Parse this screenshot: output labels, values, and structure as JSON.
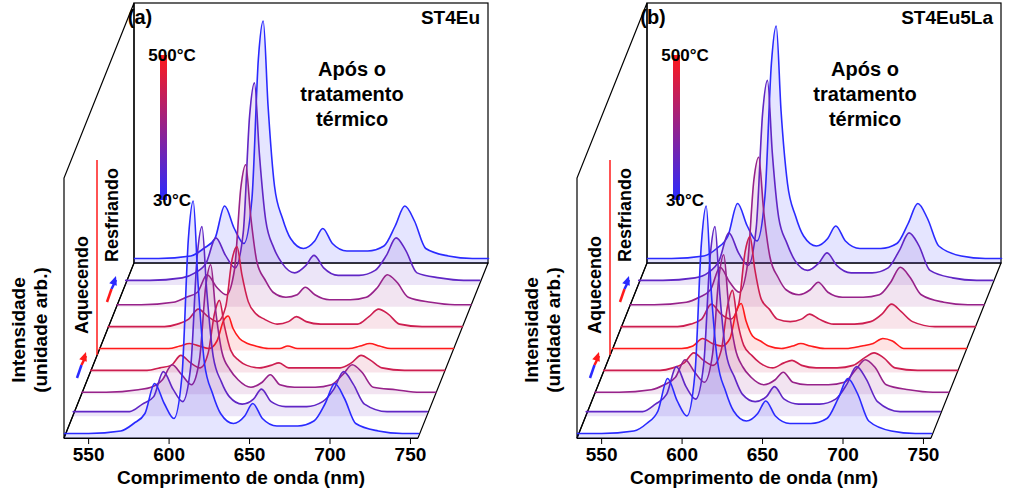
{
  "chart_data": [
    {
      "type": "line",
      "panel_label": "(a)",
      "title": "ST4Eu",
      "annotation": "Após o tratamento térmico",
      "xlabel": "Comprimento de onda (nm)",
      "ylabel": "Intensidade (unidade arb.)",
      "xlim": [
        535,
        755
      ],
      "xticks": [
        550,
        600,
        650,
        700,
        750
      ],
      "ylim": [
        0,
        100
      ],
      "tick_labels": "x",
      "colorbar": {
        "range": [
          30,
          500
        ],
        "ticks": [
          {
            "value": 30,
            "label": "30°C"
          },
          {
            "value": 500,
            "label": "500°C"
          }
        ],
        "colors": [
          "#2a2aff",
          "#ff1a1a"
        ]
      },
      "ramps": [
        "Aquecendo",
        "Resfriando"
      ],
      "x": [
        535,
        550,
        570,
        578,
        585,
        591,
        597,
        603,
        608,
        612,
        615,
        618,
        622,
        627,
        632,
        640,
        647,
        652,
        658,
        667,
        680,
        690,
        697,
        703,
        709,
        716,
        730,
        745,
        755
      ],
      "series": [
        {
          "ramp": "Aquecendo",
          "temperature": 30,
          "values": [
            2,
            2,
            3,
            6,
            10,
            22,
            14,
            8,
            25,
            80,
            95,
            62,
            30,
            18,
            10,
            6,
            9,
            14,
            8,
            5,
            5,
            7,
            14,
            22,
            16,
            6,
            3,
            2,
            2
          ]
        },
        {
          "ramp": "Aquecendo",
          "temperature": 150,
          "values": [
            2,
            2,
            2,
            5,
            8,
            18,
            11,
            6,
            20,
            64,
            76,
            50,
            24,
            14,
            8,
            5,
            7,
            11,
            6,
            4,
            4,
            6,
            11,
            18,
            13,
            5,
            2,
            2,
            2
          ]
        },
        {
          "ramp": "Aquecendo",
          "temperature": 270,
          "values": [
            1,
            1,
            2,
            3,
            6,
            12,
            8,
            4,
            14,
            44,
            52,
            34,
            17,
            10,
            6,
            3,
            5,
            8,
            4,
            3,
            3,
            4,
            8,
            12,
            9,
            3,
            2,
            1,
            1
          ]
        },
        {
          "ramp": "Aquecendo",
          "temperature": 390,
          "values": [
            1,
            1,
            1,
            2,
            3,
            7,
            4,
            2,
            8,
            24,
            29,
            19,
            9,
            5,
            3,
            2,
            3,
            4,
            2,
            2,
            2,
            2,
            4,
            7,
            5,
            2,
            1,
            1,
            1
          ]
        },
        {
          "ramp": "Aquecendo",
          "temperature": 500,
          "values": [
            1,
            1,
            1,
            1,
            2,
            3,
            2,
            1,
            4,
            12,
            14,
            9,
            5,
            3,
            2,
            1,
            1,
            2,
            1,
            1,
            1,
            1,
            2,
            3,
            2,
            1,
            1,
            1,
            1
          ]
        },
        {
          "ramp": "Resfriando",
          "temperature": 390,
          "values": [
            1,
            1,
            1,
            2,
            4,
            8,
            5,
            3,
            9,
            28,
            33,
            22,
            11,
            6,
            4,
            2,
            3,
            5,
            3,
            2,
            2,
            2,
            5,
            8,
            6,
            2,
            1,
            1,
            1
          ]
        },
        {
          "ramp": "Resfriando",
          "temperature": 270,
          "values": [
            1,
            1,
            2,
            4,
            6,
            13,
            8,
            5,
            15,
            48,
            57,
            37,
            18,
            11,
            6,
            4,
            5,
            8,
            5,
            3,
            3,
            4,
            8,
            13,
            10,
            4,
            2,
            1,
            1
          ]
        },
        {
          "ramp": "Resfriando",
          "temperature": 150,
          "values": [
            2,
            2,
            3,
            5,
            9,
            19,
            12,
            7,
            21,
            68,
            81,
            53,
            26,
            15,
            9,
            5,
            8,
            12,
            7,
            4,
            4,
            6,
            12,
            19,
            14,
            5,
            3,
            2,
            2
          ]
        },
        {
          "ramp": "Resfriando",
          "temperature": 30,
          "values": [
            2,
            2,
            3,
            6,
            10,
            23,
            14,
            8,
            26,
            82,
            97,
            63,
            31,
            18,
            10,
            6,
            9,
            14,
            8,
            5,
            5,
            7,
            15,
            23,
            17,
            6,
            3,
            2,
            2
          ]
        }
      ]
    },
    {
      "type": "line",
      "panel_label": "(b)",
      "title": "ST4Eu5La",
      "annotation": "Após o tratamento térmico",
      "xlabel": "Comprimento de onda (nm)",
      "ylabel": "Intensidade (unidade arb.)",
      "xlim": [
        535,
        755
      ],
      "xticks": [
        550,
        600,
        650,
        700,
        750
      ],
      "ylim": [
        0,
        100
      ],
      "tick_labels": "x",
      "colorbar": {
        "range": [
          30,
          500
        ],
        "ticks": [
          {
            "value": 30,
            "label": "30°C"
          },
          {
            "value": 500,
            "label": "500°C"
          }
        ],
        "colors": [
          "#2a2aff",
          "#ff1a1a"
        ]
      },
      "ramps": [
        "Aquecendo",
        "Resfriando"
      ],
      "x": [
        535,
        550,
        570,
        578,
        585,
        591,
        597,
        603,
        608,
        612,
        615,
        618,
        622,
        627,
        632,
        640,
        647,
        652,
        658,
        667,
        680,
        690,
        697,
        703,
        709,
        716,
        730,
        745,
        755
      ],
      "series": [
        {
          "ramp": "Aquecendo",
          "temperature": 30,
          "values": [
            2,
            2,
            3,
            6,
            11,
            24,
            15,
            9,
            26,
            78,
            93,
            60,
            31,
            19,
            11,
            7,
            10,
            15,
            9,
            6,
            6,
            8,
            16,
            24,
            18,
            7,
            3,
            2,
            2
          ]
        },
        {
          "ramp": "Aquecendo",
          "temperature": 150,
          "values": [
            2,
            2,
            2,
            5,
            9,
            20,
            12,
            7,
            21,
            64,
            76,
            49,
            25,
            16,
            9,
            6,
            8,
            12,
            7,
            5,
            5,
            7,
            13,
            20,
            15,
            6,
            2,
            2,
            2
          ]
        },
        {
          "ramp": "Aquecendo",
          "temperature": 270,
          "values": [
            1,
            1,
            2,
            4,
            7,
            14,
            9,
            5,
            16,
            47,
            56,
            36,
            19,
            11,
            7,
            4,
            6,
            9,
            5,
            4,
            4,
            5,
            10,
            14,
            11,
            4,
            2,
            1,
            1
          ]
        },
        {
          "ramp": "Aquecendo",
          "temperature": 390,
          "values": [
            1,
            1,
            1,
            2,
            4,
            8,
            5,
            3,
            9,
            27,
            33,
            21,
            11,
            7,
            4,
            2,
            4,
            5,
            3,
            2,
            2,
            3,
            6,
            8,
            6,
            2,
            1,
            1,
            1
          ]
        },
        {
          "ramp": "Aquecendo",
          "temperature": 500,
          "values": [
            1,
            1,
            1,
            1,
            2,
            5,
            3,
            2,
            5,
            16,
            19,
            12,
            6,
            4,
            2,
            1,
            2,
            3,
            2,
            1,
            1,
            2,
            3,
            5,
            4,
            1,
            1,
            1,
            1
          ]
        },
        {
          "ramp": "Resfriando",
          "temperature": 390,
          "values": [
            1,
            1,
            1,
            2,
            4,
            10,
            6,
            4,
            10,
            31,
            37,
            24,
            12,
            8,
            4,
            3,
            4,
            6,
            4,
            2,
            2,
            3,
            6,
            10,
            7,
            3,
            1,
            1,
            1
          ]
        },
        {
          "ramp": "Resfriando",
          "temperature": 270,
          "values": [
            1,
            1,
            2,
            4,
            7,
            16,
            10,
            6,
            17,
            51,
            60,
            39,
            20,
            12,
            7,
            5,
            7,
            10,
            6,
            4,
            4,
            5,
            10,
            16,
            12,
            5,
            2,
            1,
            1
          ]
        },
        {
          "ramp": "Resfriando",
          "temperature": 150,
          "values": [
            2,
            2,
            3,
            5,
            10,
            21,
            13,
            8,
            23,
            69,
            82,
            53,
            27,
            17,
            10,
            6,
            9,
            13,
            8,
            5,
            5,
            7,
            14,
            21,
            16,
            6,
            3,
            2,
            2
          ]
        },
        {
          "ramp": "Resfriando",
          "temperature": 30,
          "values": [
            2,
            2,
            3,
            6,
            11,
            24,
            15,
            9,
            27,
            80,
            95,
            61,
            32,
            19,
            11,
            7,
            10,
            15,
            9,
            6,
            6,
            8,
            16,
            24,
            18,
            7,
            3,
            2,
            2
          ]
        }
      ]
    }
  ]
}
